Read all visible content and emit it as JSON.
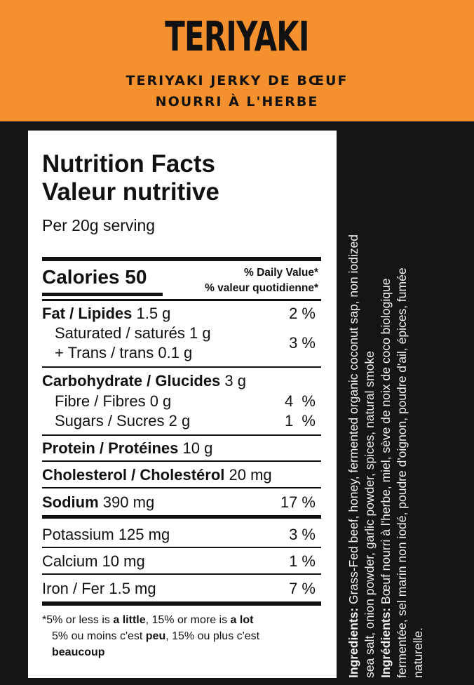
{
  "header": {
    "title": "TERIYAKI",
    "subtitle_line1": "TERIYAKI JERKY DE BŒUF",
    "subtitle_line2": "NOURRI À L'HERBE"
  },
  "colors": {
    "header_bg": "#f4902d",
    "background": "#151515",
    "panel": "#ffffff"
  },
  "nutrition": {
    "title_en": "Nutrition Facts",
    "title_fr": "Valeur nutritive",
    "serving": "Per 20g serving",
    "calories_label": "Calories",
    "calories_value": "50",
    "dv_en": "% Daily Value*",
    "dv_fr": "% valeur quotidienne*",
    "fat": {
      "label": "Fat / Lipides",
      "value": "1.5 g",
      "pct": "2 %"
    },
    "saturated": {
      "label": "Saturated / saturés 1 g"
    },
    "trans": {
      "label": "+ Trans / trans 0.1 g",
      "pct": "3 %"
    },
    "carb": {
      "label": "Carbohydrate / Glucides",
      "value": "3 g"
    },
    "fibre": {
      "label": "Fibre / Fibres 0 g",
      "pct": "4  %"
    },
    "sugars": {
      "label": "Sugars / Sucres 2 g",
      "pct": "1  %"
    },
    "protein": {
      "label": "Protein / Protéines",
      "value": "10 g"
    },
    "cholesterol": {
      "label": "Cholesterol / Cholestérol",
      "value": "20 mg"
    },
    "sodium": {
      "label": "Sodium",
      "value": "390 mg",
      "pct": "17 %"
    },
    "potassium": {
      "label": "Potassium 125 mg",
      "pct": "3 %"
    },
    "calcium": {
      "label": "Calcium 10 mg",
      "pct": "1 %"
    },
    "iron": {
      "label": "Iron / Fer 1.5 mg",
      "pct": "7 %"
    },
    "footnote": {
      "star": "*",
      "en_a": "5% or less is ",
      "en_b": "a little",
      "en_c": ", 15% or more is ",
      "en_d": "a lot",
      "fr_a": "5% ou moins c'est ",
      "fr_b": "peu",
      "fr_c": ", 15% ou plus c'est",
      "fr_d": "beaucoup"
    }
  },
  "ingredients": {
    "en_label": "Ingredients:",
    "en_line1": " Grass-Fed beef, honey, fermented organic coconut sap, non iodized",
    "en_line2": "sea salt, onion powder, garlic powder, spices, natural smoke",
    "fr_label": "Ingrédients:",
    "fr_line1": " Bœuf nourri à l'herbe, miel, sève de noix de coco biologique",
    "fr_line2": "fermentée, sel marin non iodé, poudre d'oignon, poudre d'ail, épices, fumée",
    "fr_line3": "naturelle."
  }
}
